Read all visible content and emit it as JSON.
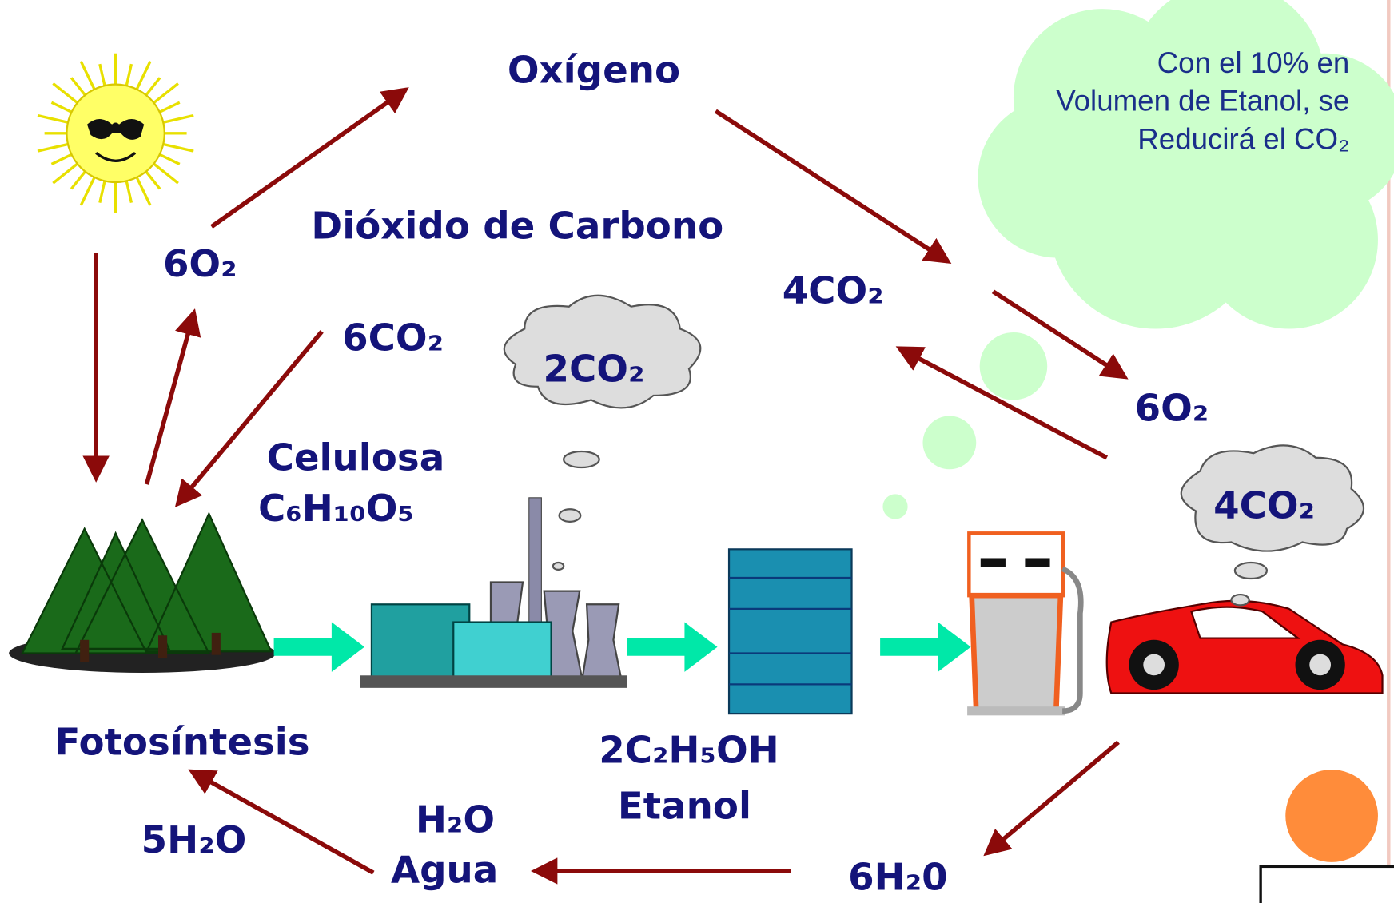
{
  "labels": {
    "oxygen": "Oxígeno",
    "carbon_dioxide": "Dióxido de Carbono",
    "o2_left": "6O₂",
    "co2_left": "6CO₂",
    "co2_factory": "2CO₂",
    "cellulose": "Celulosa",
    "cellulose_formula": "C₆H₁₀O₅",
    "co2_middle": "4CO₂",
    "o2_right": "6O₂",
    "co2_car": "4CO₂",
    "photosynthesis": "Fotosíntesis",
    "ethanol_formula": "2C₂H₅OH",
    "ethanol": "Etanol",
    "water_formula": "H₂O",
    "water": "Agua",
    "water_left": "5H₂O",
    "water_right": "6H₂0"
  },
  "cloud_text": [
    "Con el 10% en",
    "Volumen  de Etanol, se",
    "Reducirá el CO₂"
  ]
}
